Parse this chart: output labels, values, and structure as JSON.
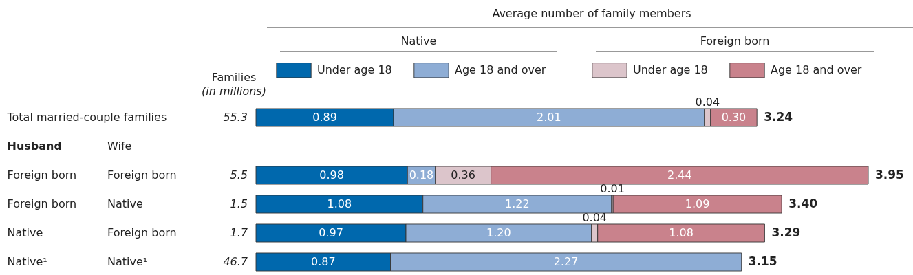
{
  "chart_data": {
    "type": "bar",
    "orientation": "horizontal",
    "stacked": true,
    "title": "Average number of family members",
    "categories": [
      "Total married-couple families",
      "Husband",
      "Foreign born",
      "Foreign born",
      "Native",
      "Native¹"
    ],
    "y2_categories": [
      null,
      "Wife",
      "Foreign born",
      "Native",
      "Foreign born",
      "Native¹"
    ],
    "series": [
      {
        "name": "Under age 18",
        "color": "#0068ad",
        "values": [
          0.89,
          null,
          0.98,
          1.08,
          0.97,
          0.87
        ],
        "value_labels": [
          "0.89",
          null,
          "0.98",
          "1.08",
          "0.97",
          "0.87"
        ]
      },
      {
        "name": "Age 18 and over",
        "color": "#8eadd5",
        "values": [
          2.01,
          null,
          0.18,
          1.22,
          1.2,
          2.27
        ],
        "value_labels": [
          "2.01",
          null,
          "0.18",
          "1.22",
          "1.20",
          "2.27"
        ]
      },
      {
        "name": "Under age 18",
        "color": "#dcc5cb",
        "values": [
          0.04,
          null,
          0.36,
          0.01,
          0.04,
          null
        ],
        "value_labels": [
          "0.04",
          null,
          "0.36",
          "0.01",
          "0.04",
          null
        ]
      },
      {
        "name": "Age 18 and over",
        "color": "#c9828c",
        "values": [
          0.3,
          null,
          2.44,
          1.09,
          1.08,
          null
        ],
        "value_labels": [
          "0.30",
          null,
          "2.44",
          "1.09",
          "1.08",
          null
        ]
      }
    ],
    "totals": [
      "3.24",
      null,
      "3.95",
      "3.40",
      "3.29",
      "3.15"
    ],
    "legend": "top",
    "annotations": [
      "Native",
      "Foreign born",
      "Families",
      "(in millions)",
      "55.3",
      "5.5",
      "1.5",
      "1.7",
      "46.7"
    ]
  }
}
